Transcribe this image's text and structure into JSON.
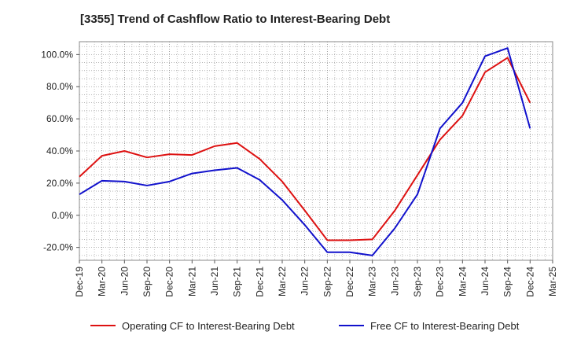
{
  "chart_data": {
    "type": "line",
    "title": "[3355]  Trend of Cashflow Ratio to Interest-Bearing Debt",
    "xlabel": "",
    "ylabel": "",
    "categories": [
      "Dec-19",
      "Mar-20",
      "Jun-20",
      "Sep-20",
      "Dec-20",
      "Mar-21",
      "Jun-21",
      "Sep-21",
      "Dec-21",
      "Mar-22",
      "Jun-22",
      "Sep-22",
      "Dec-22",
      "Mar-23",
      "Jun-23",
      "Sep-23",
      "Dec-23",
      "Mar-24",
      "Jun-24",
      "Sep-24",
      "Dec-24",
      "Mar-25"
    ],
    "y_ticks": [
      "-20.0%",
      "0.0%",
      "20.0%",
      "40.0%",
      "60.0%",
      "80.0%",
      "100.0%"
    ],
    "ylim": [
      -28,
      108
    ],
    "grid": true,
    "legend_position": "bottom",
    "series": [
      {
        "name": "Operating CF to Interest-Bearing Debt",
        "color": "#dd1111",
        "values": [
          24,
          37,
          40,
          36,
          38,
          37.5,
          43,
          45,
          35,
          21,
          3,
          -15.5,
          -15.5,
          -15,
          3,
          25,
          47,
          62,
          89,
          98,
          70,
          null
        ]
      },
      {
        "name": "Free CF to Interest-Bearing Debt",
        "color": "#1111cc",
        "values": [
          13,
          21.5,
          21,
          18.5,
          21,
          26,
          28,
          29.5,
          22,
          9.5,
          -6,
          -23,
          -23,
          -25,
          -8,
          13,
          54,
          70,
          99,
          104,
          54,
          null
        ]
      }
    ]
  }
}
